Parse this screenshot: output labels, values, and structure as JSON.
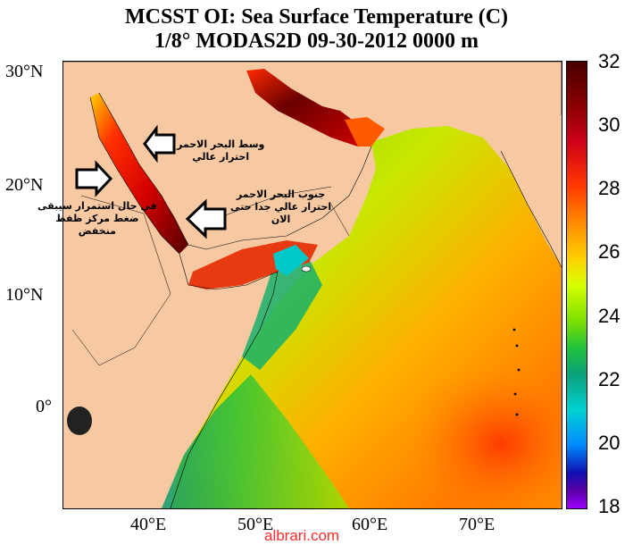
{
  "title": {
    "line1": "MCSST OI:  Sea Surface Temperature (C)",
    "line2": "1/8° MODAS2D 09-30-2012 0000 m"
  },
  "latitude_labels": [
    "30°N",
    "20°N",
    "10°N",
    "0°"
  ],
  "longitude_labels": [
    "40°E",
    "50°E",
    "60°E",
    "70°E"
  ],
  "colorbar": {
    "labels": [
      "32",
      "30",
      "28",
      "26",
      "24",
      "22",
      "20",
      "18"
    ],
    "min": 18,
    "max": 32
  },
  "annotations": {
    "red_sea_middle": [
      "وسط البحر الاحمر",
      "احترار عالي"
    ],
    "red_sea_south": [
      "جنوب البحر الاحمر",
      "احترار عالي جدا حتى",
      "الان"
    ],
    "continuation": [
      "في حال استمرار سيبقى",
      "ضغط مركز ظفظ",
      "منخفض"
    ]
  },
  "watermark": "albrari.com",
  "colors": {
    "land": "#f6c9a2",
    "arrow_fill": "#ffffff",
    "arrow_stroke": "#000000"
  }
}
